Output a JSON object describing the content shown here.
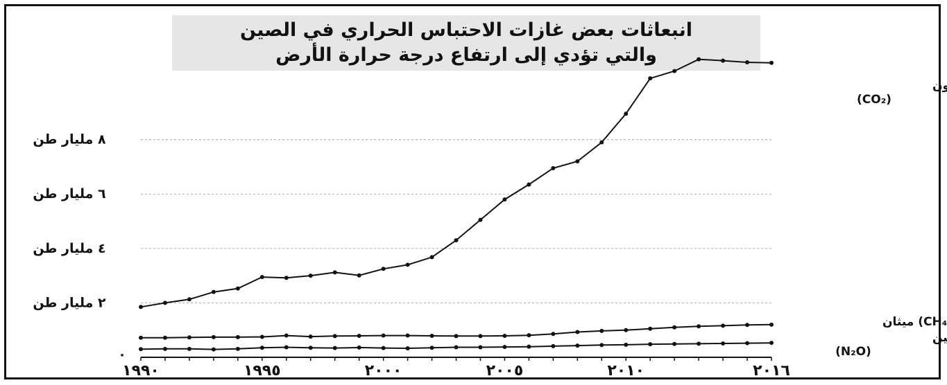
{
  "chart_data": {
    "type": "line",
    "title_line1": "انبعاثات بعض غازات الاحتباس الحراري في الصين",
    "title_line2": "والتي تؤدي إلى ارتفاع درجة حرارة الأرض",
    "x": [
      1990,
      1991,
      1992,
      1993,
      1994,
      1995,
      1996,
      1997,
      1998,
      1999,
      2000,
      2001,
      2002,
      2003,
      2004,
      2005,
      2006,
      2007,
      2008,
      2009,
      2010,
      2011,
      2012,
      2013,
      2014,
      2015,
      2016
    ],
    "x_tick_labels": [
      {
        "value": 1990,
        "label": "١٩٩٠"
      },
      {
        "value": 1995,
        "label": "١٩٩٥"
      },
      {
        "value": 2000,
        "label": "٢٠٠٠"
      },
      {
        "value": 2005,
        "label": "٢٠٠٥"
      },
      {
        "value": 2010,
        "label": "٢٠١٠"
      },
      {
        "value": 2016,
        "label": "٢٠١٦"
      }
    ],
    "y_tick_labels": [
      {
        "value": 0,
        "label": "٠"
      },
      {
        "value": 2,
        "label": "٢ مليار طن"
      },
      {
        "value": 4,
        "label": "٤ مليار طن"
      },
      {
        "value": 6,
        "label": "٦ مليار طن"
      },
      {
        "value": 8,
        "label": "٨ مليار طن"
      }
    ],
    "ylim": [
      0,
      10
    ],
    "xlim": [
      1990,
      2016
    ],
    "grid": "horizontal dashed",
    "series": [
      {
        "name_line1": "ثاني أكسيد الكربون",
        "name_line2": "(CO₂)",
        "values": [
          1.85,
          2.0,
          2.13,
          2.4,
          2.53,
          2.95,
          2.92,
          3.0,
          3.12,
          3.01,
          3.25,
          3.4,
          3.68,
          4.3,
          5.05,
          5.8,
          6.35,
          6.95,
          7.2,
          7.9,
          8.95,
          10.25,
          10.52,
          10.95,
          10.9,
          10.84,
          10.82
        ]
      },
      {
        "name": "(CH₄) ميثان",
        "values": [
          0.72,
          0.72,
          0.73,
          0.74,
          0.74,
          0.75,
          0.8,
          0.76,
          0.78,
          0.79,
          0.8,
          0.8,
          0.79,
          0.78,
          0.78,
          0.79,
          0.81,
          0.86,
          0.93,
          0.97,
          1.0,
          1.05,
          1.1,
          1.14,
          1.16,
          1.19,
          1.2
        ]
      },
      {
        "name_line1": "أكسيد النيتروجين",
        "name_line2": "(N₂O)",
        "values": [
          0.3,
          0.31,
          0.31,
          0.29,
          0.31,
          0.35,
          0.37,
          0.35,
          0.34,
          0.36,
          0.34,
          0.33,
          0.35,
          0.37,
          0.37,
          0.38,
          0.39,
          0.41,
          0.43,
          0.45,
          0.46,
          0.48,
          0.49,
          0.5,
          0.51,
          0.52,
          0.53
        ]
      }
    ],
    "colors": {
      "line": "#111111",
      "grid": "#aaaaaa",
      "title_bg": "#e6e6e6"
    }
  }
}
